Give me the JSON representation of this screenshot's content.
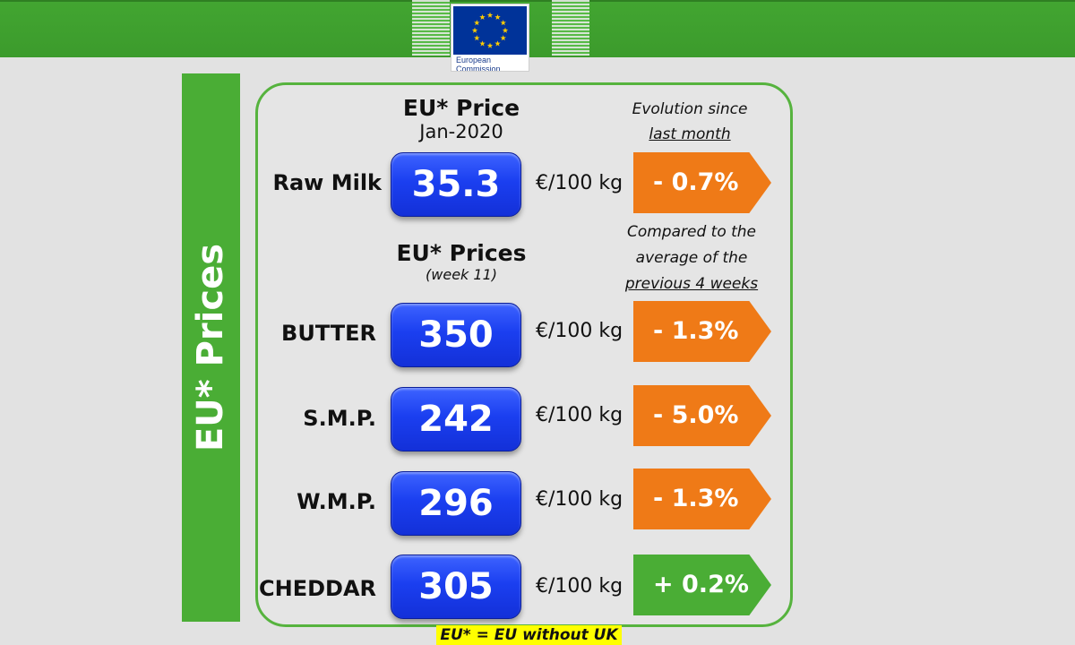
{
  "logo": {
    "text_line1": "European",
    "text_line2": "Commission"
  },
  "side_title": "EU* Prices",
  "raw_milk_header": {
    "title": "EU* Price",
    "period": "Jan-2020"
  },
  "evolution_header": {
    "line1": "Evolution since",
    "line2": "last month"
  },
  "raw_milk": {
    "label": "Raw Milk",
    "price": "35.3",
    "unit": "€/100 kg",
    "change": "- 0.7%",
    "direction": "down"
  },
  "products_header": {
    "title": "EU* Prices",
    "period": "(week 11)"
  },
  "compare_header": {
    "line1": "Compared to the",
    "line2": "average of the",
    "line3": "previous 4 weeks"
  },
  "products": [
    {
      "label": "BUTTER",
      "price": "350",
      "unit": "€/100 kg",
      "change": "- 1.3%",
      "direction": "down"
    },
    {
      "label": "S.M.P.",
      "price": "242",
      "unit": "€/100 kg",
      "change": "- 5.0%",
      "direction": "down"
    },
    {
      "label": "W.M.P.",
      "price": "296",
      "unit": "€/100 kg",
      "change": "- 1.3%",
      "direction": "down"
    },
    {
      "label": "CHEDDAR",
      "price": "305",
      "unit": "€/100 kg",
      "change": "+ 0.2%",
      "direction": "up"
    }
  ],
  "footnote": "EU* = EU without UK",
  "colors": {
    "green": "#4aad35",
    "orange": "#ef7a17",
    "blue": "#1b3ff0",
    "footnote_bg": "#ffff00"
  }
}
